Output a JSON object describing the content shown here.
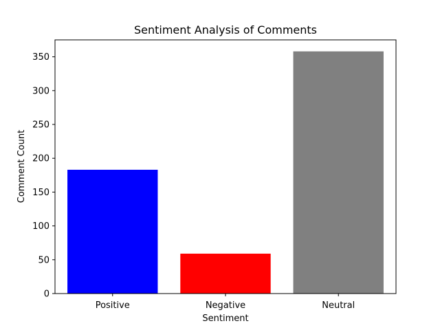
{
  "chart_data": {
    "type": "bar",
    "title": "Sentiment Analysis of Comments",
    "xlabel": "Sentiment",
    "ylabel": "Comment Count",
    "categories": [
      "Positive",
      "Negative",
      "Neutral"
    ],
    "values": [
      183,
      59,
      358
    ],
    "colors": [
      "#0000ff",
      "#ff0000",
      "#808080"
    ],
    "ylim": [
      0,
      375
    ],
    "yticks": [
      0,
      50,
      100,
      150,
      200,
      250,
      300,
      350
    ],
    "grid": false,
    "legend": "none"
  }
}
